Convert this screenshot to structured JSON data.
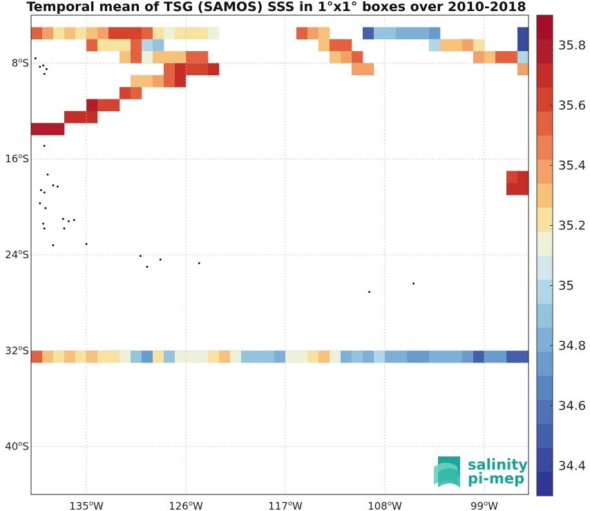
{
  "title": "Temporal mean of TSG (SAMOS) SSS in 1°x1° boxes over 2010-2018",
  "map": {
    "lon_range": [
      -140,
      -95
    ],
    "lat_range": [
      -44,
      -4
    ],
    "lon_ticks": [
      {
        "value": -135,
        "deg": "135",
        "hemi": "W"
      },
      {
        "value": -126,
        "deg": "126",
        "hemi": "W"
      },
      {
        "value": -117,
        "deg": "117",
        "hemi": "W"
      },
      {
        "value": -108,
        "deg": "108",
        "hemi": "W"
      },
      {
        "value": -99,
        "deg": "99",
        "hemi": "W"
      }
    ],
    "lat_ticks": [
      {
        "value": -8,
        "deg": "8",
        "hemi": "S"
      },
      {
        "value": -16,
        "deg": "16",
        "hemi": "S"
      },
      {
        "value": -24,
        "deg": "24",
        "hemi": "S"
      },
      {
        "value": -32,
        "deg": "32",
        "hemi": "S"
      },
      {
        "value": -40,
        "deg": "40",
        "hemi": "S"
      }
    ],
    "grid": true,
    "land_color": "#000000",
    "islands": [
      [
        -139.6,
        -7.6
      ],
      [
        -139.2,
        -8.3
      ],
      [
        -138.9,
        -8.2
      ],
      [
        -138.8,
        -8.9
      ],
      [
        -138.6,
        -8.5
      ],
      [
        -138.8,
        -14.9
      ],
      [
        -138.5,
        -17.3
      ],
      [
        -139.1,
        -18.6
      ],
      [
        -138.8,
        -18.8
      ],
      [
        -138.0,
        -18.2
      ],
      [
        -137.6,
        -18.3
      ],
      [
        -139.2,
        -19.7
      ],
      [
        -138.7,
        -20.1
      ],
      [
        -137.1,
        -21.0
      ],
      [
        -136.6,
        -21.2
      ],
      [
        -136.1,
        -21.1
      ],
      [
        -138.9,
        -21.4
      ],
      [
        -138.8,
        -21.8
      ],
      [
        -137.0,
        -21.8
      ],
      [
        -138.0,
        -23.2
      ],
      [
        -135.0,
        -23.1
      ],
      [
        -130.1,
        -24.1
      ],
      [
        -129.5,
        -25.0
      ],
      [
        -128.3,
        -24.4
      ],
      [
        -124.8,
        -24.7
      ],
      [
        -109.4,
        -27.1
      ],
      [
        -105.4,
        -26.4
      ]
    ]
  },
  "colorbar": {
    "min": 34.3,
    "max": 35.9,
    "tick_labels": [
      "35.8",
      "35.6",
      "35.4",
      "35.2",
      "35",
      "34.8",
      "34.6",
      "34.4"
    ],
    "colors": [
      "#313695",
      "#3a4a9f",
      "#4560ab",
      "#4e73b6",
      "#5986c1",
      "#6a9ccb",
      "#7db0d6",
      "#94c3de",
      "#b1d6e8",
      "#d1e8ef",
      "#ecf1d7",
      "#f8e2a0",
      "#f6c27a",
      "#f2a266",
      "#ec8253",
      "#e3613f",
      "#d3432f",
      "#c42e27",
      "#b21b2a",
      "#a70d27"
    ]
  },
  "chart_data": {
    "type": "heatmap",
    "variable": "TSG (SAMOS) SSS",
    "cell_size_deg": 1,
    "cells": [
      [
        -140,
        -5,
        35.5
      ],
      [
        -139,
        -5,
        35.4
      ],
      [
        -138,
        -5,
        35.2
      ],
      [
        -137,
        -5,
        35.3
      ],
      [
        -136,
        -5,
        35.2
      ],
      [
        -135,
        -5,
        35.3
      ],
      [
        -134,
        -5,
        35.4
      ],
      [
        -133,
        -5,
        35.6
      ],
      [
        -132,
        -5,
        35.6
      ],
      [
        -131,
        -5,
        35.6
      ],
      [
        -130,
        -5,
        35.5
      ],
      [
        -129,
        -5,
        35.2
      ],
      [
        -128,
        -5,
        35.1
      ],
      [
        -127,
        -5,
        35.2
      ],
      [
        -126,
        -5,
        35.2
      ],
      [
        -125,
        -5,
        35.2
      ],
      [
        -124,
        -5,
        35.1
      ],
      [
        -116,
        -5,
        35.5
      ],
      [
        -115,
        -5,
        35.4
      ],
      [
        -114,
        -5,
        35.3
      ],
      [
        -110,
        -5,
        34.5
      ],
      [
        -109,
        -5,
        34.9
      ],
      [
        -108,
        -5,
        34.9
      ],
      [
        -107,
        -5,
        34.8
      ],
      [
        -106,
        -5,
        34.8
      ],
      [
        -105,
        -5,
        34.8
      ],
      [
        -104,
        -5,
        34.7
      ],
      [
        -96,
        -5,
        34.4
      ],
      [
        -135,
        -6,
        35.5
      ],
      [
        -134,
        -6,
        35.2
      ],
      [
        -133,
        -6,
        35.2
      ],
      [
        -132,
        -6,
        35.2
      ],
      [
        -131,
        -6,
        35.5
      ],
      [
        -130,
        -6,
        35.0
      ],
      [
        -129,
        -6,
        34.9
      ],
      [
        -114,
        -6,
        35.3
      ],
      [
        -113,
        -6,
        35.5
      ],
      [
        -112,
        -6,
        35.5
      ],
      [
        -104,
        -6,
        35.0
      ],
      [
        -103,
        -6,
        35.3
      ],
      [
        -102,
        -6,
        35.3
      ],
      [
        -101,
        -6,
        35.4
      ],
      [
        -100,
        -6,
        35.2
      ],
      [
        -96,
        -6,
        34.4
      ],
      [
        -132,
        -7,
        35.3
      ],
      [
        -131,
        -7,
        35.5
      ],
      [
        -130,
        -7,
        35.1
      ],
      [
        -129,
        -7,
        35.3
      ],
      [
        -128,
        -7,
        35.3
      ],
      [
        -127,
        -7,
        35.3
      ],
      [
        -126,
        -7,
        35.5
      ],
      [
        -125,
        -7,
        35.5
      ],
      [
        -113,
        -7,
        35.3
      ],
      [
        -112,
        -7,
        35.4
      ],
      [
        -111,
        -7,
        35.5
      ],
      [
        -100,
        -7,
        35.4
      ],
      [
        -99,
        -7,
        35.3
      ],
      [
        -98,
        -7,
        35.5
      ],
      [
        -97,
        -7,
        35.5
      ],
      [
        -96,
        -7,
        35.0
      ],
      [
        -128,
        -8,
        35.5
      ],
      [
        -127,
        -8,
        35.7
      ],
      [
        -126,
        -8,
        35.6
      ],
      [
        -125,
        -8,
        35.6
      ],
      [
        -124,
        -8,
        35.7
      ],
      [
        -111,
        -8,
        35.4
      ],
      [
        -110,
        -8,
        35.4
      ],
      [
        -96,
        -8,
        35.4
      ],
      [
        -131,
        -9,
        35.3
      ],
      [
        -130,
        -9,
        35.3
      ],
      [
        -129,
        -9,
        35.4
      ],
      [
        -128,
        -9,
        35.5
      ],
      [
        -127,
        -9,
        35.7
      ],
      [
        -132,
        -10,
        35.6
      ],
      [
        -131,
        -10,
        35.5
      ],
      [
        -135,
        -11,
        35.8
      ],
      [
        -134,
        -11,
        35.6
      ],
      [
        -133,
        -11,
        35.6
      ],
      [
        -137,
        -12,
        35.7
      ],
      [
        -136,
        -12,
        35.7
      ],
      [
        -135,
        -12,
        35.7
      ],
      [
        -140,
        -13,
        35.8
      ],
      [
        -139,
        -13,
        35.8
      ],
      [
        -138,
        -13,
        35.8
      ],
      [
        -97,
        -17,
        35.6
      ],
      [
        -96,
        -17,
        35.7
      ],
      [
        -97,
        -18,
        35.7
      ],
      [
        -96,
        -18,
        35.7
      ],
      [
        -140,
        -32,
        35.5
      ],
      [
        -139,
        -32,
        35.3
      ],
      [
        -138,
        -32,
        35.2
      ],
      [
        -137,
        -32,
        35.3
      ],
      [
        -136,
        -32,
        35.2
      ],
      [
        -135,
        -32,
        35.3
      ],
      [
        -134,
        -32,
        35.2
      ],
      [
        -133,
        -32,
        35.2
      ],
      [
        -132,
        -32,
        35.1
      ],
      [
        -131,
        -32,
        34.9
      ],
      [
        -130,
        -32,
        34.7
      ],
      [
        -129,
        -32,
        35.2
      ],
      [
        -128,
        -32,
        34.9
      ],
      [
        -127,
        -32,
        35.1
      ],
      [
        -126,
        -32,
        35.1
      ],
      [
        -125,
        -32,
        35.1
      ],
      [
        -124,
        -32,
        35.2
      ],
      [
        -123,
        -32,
        35.3
      ],
      [
        -122,
        -32,
        35.1
      ],
      [
        -121,
        -32,
        34.9
      ],
      [
        -120,
        -32,
        34.9
      ],
      [
        -119,
        -32,
        34.9
      ],
      [
        -118,
        -32,
        34.8
      ],
      [
        -117,
        -32,
        35.1
      ],
      [
        -116,
        -32,
        35.1
      ],
      [
        -115,
        -32,
        35.2
      ],
      [
        -114,
        -32,
        35.3
      ],
      [
        -113,
        -32,
        35.1
      ],
      [
        -112,
        -32,
        34.8
      ],
      [
        -111,
        -32,
        34.9
      ],
      [
        -110,
        -32,
        34.8
      ],
      [
        -109,
        -32,
        35.0
      ],
      [
        -108,
        -32,
        34.8
      ],
      [
        -107,
        -32,
        34.8
      ],
      [
        -106,
        -32,
        34.7
      ],
      [
        -105,
        -32,
        34.7
      ],
      [
        -104,
        -32,
        34.8
      ],
      [
        -103,
        -32,
        34.8
      ],
      [
        -102,
        -32,
        34.8
      ],
      [
        -101,
        -32,
        34.7
      ],
      [
        -100,
        -32,
        34.5
      ],
      [
        -99,
        -32,
        34.7
      ],
      [
        -98,
        -32,
        34.7
      ],
      [
        -97,
        -32,
        34.5
      ],
      [
        -96,
        -32,
        34.5
      ]
    ]
  },
  "logo": {
    "line1": "salinity",
    "line2": "pi-mep",
    "color": "#17a393"
  }
}
